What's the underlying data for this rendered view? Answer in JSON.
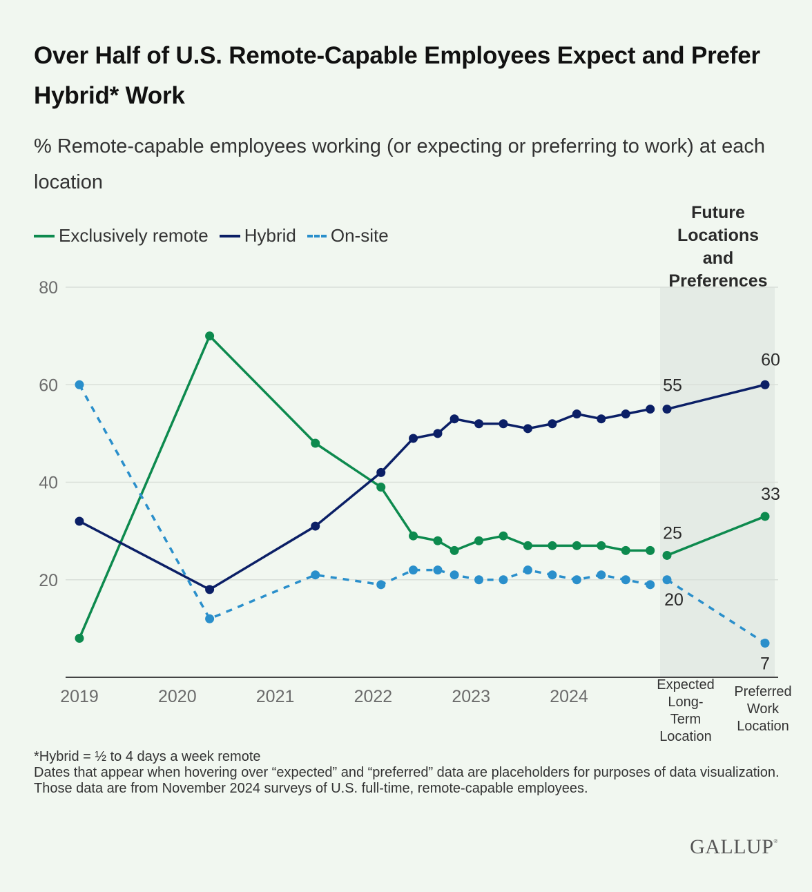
{
  "title": "Over Half of U.S. Remote-Capable Employees Expect and Prefer Hybrid* Work",
  "subtitle": "% Remote-capable employees working (or expecting or preferring to work) at each location",
  "future_section_title": "Future Locations and Preferences",
  "footnote": {
    "line1": "*Hybrid = ½ to 4 days a week remote",
    "line2": "Dates that appear when hovering over “expected” and “preferred” data are placeholders for purposes of data visualization. Those data are from November 2024 surveys of U.S. full-time, remote-capable employees."
  },
  "logo": "GALLUP",
  "chart_data": {
    "type": "line",
    "title": "Over Half of U.S. Remote-Capable Employees Expect and Prefer Hybrid* Work",
    "subtitle": "% Remote-capable employees working (or expecting or preferring to work) at each location",
    "xlabel": "",
    "ylabel": "",
    "ylim": [
      0,
      80
    ],
    "yticks": [
      20,
      40,
      60,
      80
    ],
    "xlim": [
      2019,
      2024.95
    ],
    "xticks": [
      2019,
      2020,
      2021,
      2022,
      2023,
      2024
    ],
    "xtick_labels": [
      "2019",
      "2020",
      "2021",
      "2022",
      "2023",
      "2024"
    ],
    "grid": true,
    "legend_position": "top-left",
    "x": [
      2019.0,
      2020.33,
      2021.41,
      2022.08,
      2022.41,
      2022.66,
      2022.83,
      2023.08,
      2023.33,
      2023.58,
      2023.83,
      2024.08,
      2024.33,
      2024.58,
      2024.83
    ],
    "series": [
      {
        "name": "Exclusively remote",
        "color": "#0d8a4e",
        "style": "solid",
        "values": [
          8,
          70,
          48,
          39,
          29,
          28,
          26,
          28,
          29,
          27,
          27,
          27,
          27,
          26,
          26
        ],
        "future": [
          25,
          33
        ]
      },
      {
        "name": "Hybrid",
        "color": "#0b1f66",
        "style": "solid",
        "values": [
          32,
          18,
          31,
          42,
          49,
          50,
          53,
          52,
          52,
          51,
          52,
          54,
          53,
          54,
          55
        ],
        "future": [
          55,
          60
        ]
      },
      {
        "name": "On-site",
        "color": "#2a8fcb",
        "style": "dashed",
        "values": [
          60,
          12,
          21,
          19,
          22,
          22,
          21,
          20,
          20,
          22,
          21,
          20,
          21,
          20,
          19
        ],
        "future": [
          20,
          7
        ]
      }
    ],
    "future_categories": [
      "Expected Long-Term Location",
      "Preferred Work Location"
    ],
    "future_category_lines": [
      [
        "Expected",
        "Long-",
        "Term",
        "Location"
      ],
      [
        "Preferred",
        "Work",
        "Location"
      ]
    ],
    "annotations": {
      "section_title": "Future Locations and Preferences"
    }
  }
}
